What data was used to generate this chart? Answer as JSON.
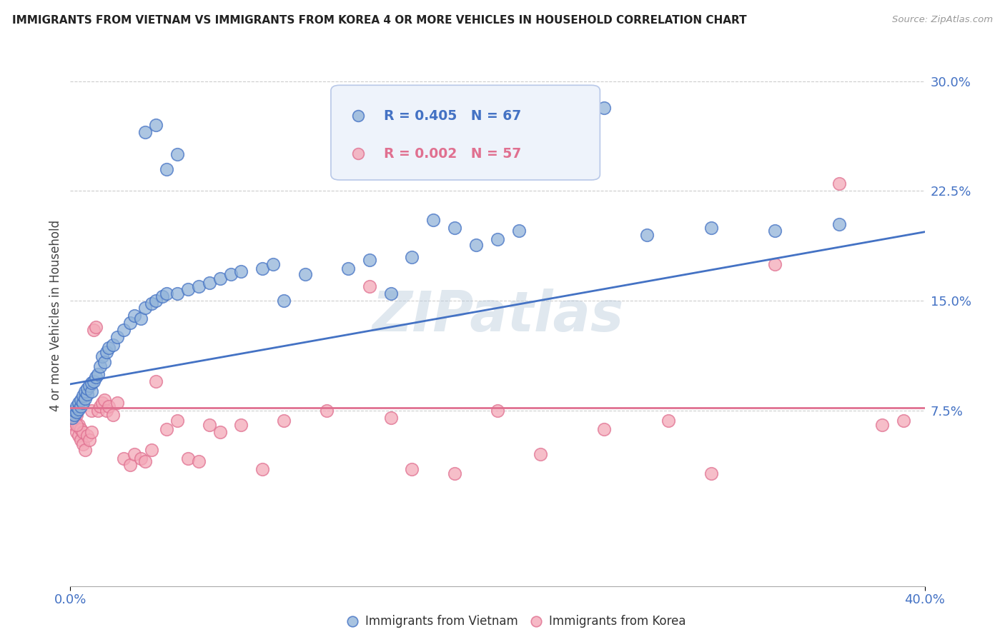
{
  "title": "IMMIGRANTS FROM VIETNAM VS IMMIGRANTS FROM KOREA 4 OR MORE VEHICLES IN HOUSEHOLD CORRELATION CHART",
  "source": "Source: ZipAtlas.com",
  "ylabel": "4 or more Vehicles in Household",
  "yticks": [
    0.075,
    0.15,
    0.225,
    0.3
  ],
  "ytick_labels": [
    "7.5%",
    "15.0%",
    "22.5%",
    "30.0%"
  ],
  "xlim": [
    0.0,
    0.4
  ],
  "ylim": [
    -0.045,
    0.325
  ],
  "vietnam_R": 0.405,
  "vietnam_N": 67,
  "korea_R": 0.002,
  "korea_N": 57,
  "vietnam_color": "#92B4D9",
  "korea_color": "#F4A8B8",
  "vietnam_line_color": "#4472C4",
  "korea_line_color": "#E07090",
  "legend_box_facecolor": "#EEF3FB",
  "legend_box_edgecolor": "#B8C8E8",
  "viet_line_x0": 0.0,
  "viet_line_y0": 0.093,
  "viet_line_x1": 0.4,
  "viet_line_y1": 0.197,
  "kor_line_x0": 0.0,
  "kor_line_y0": 0.077,
  "kor_line_x1": 0.4,
  "kor_line_y1": 0.077,
  "vietnam_x": [
    0.001,
    0.002,
    0.002,
    0.003,
    0.003,
    0.004,
    0.004,
    0.005,
    0.005,
    0.006,
    0.006,
    0.007,
    0.007,
    0.008,
    0.008,
    0.009,
    0.01,
    0.01,
    0.011,
    0.012,
    0.013,
    0.014,
    0.015,
    0.016,
    0.017,
    0.018,
    0.02,
    0.022,
    0.025,
    0.028,
    0.03,
    0.033,
    0.035,
    0.038,
    0.04,
    0.043,
    0.045,
    0.05,
    0.055,
    0.06,
    0.065,
    0.07,
    0.075,
    0.08,
    0.09,
    0.095,
    0.1,
    0.11,
    0.13,
    0.14,
    0.15,
    0.16,
    0.17,
    0.18,
    0.19,
    0.2,
    0.21,
    0.23,
    0.25,
    0.27,
    0.3,
    0.33,
    0.36,
    0.035,
    0.04,
    0.045,
    0.05
  ],
  "vietnam_y": [
    0.07,
    0.072,
    0.075,
    0.074,
    0.078,
    0.076,
    0.08,
    0.078,
    0.082,
    0.08,
    0.085,
    0.083,
    0.088,
    0.086,
    0.09,
    0.092,
    0.088,
    0.094,
    0.095,
    0.098,
    0.1,
    0.105,
    0.112,
    0.108,
    0.115,
    0.118,
    0.12,
    0.125,
    0.13,
    0.135,
    0.14,
    0.138,
    0.145,
    0.148,
    0.15,
    0.153,
    0.155,
    0.155,
    0.158,
    0.16,
    0.162,
    0.165,
    0.168,
    0.17,
    0.172,
    0.175,
    0.15,
    0.168,
    0.172,
    0.178,
    0.155,
    0.18,
    0.205,
    0.2,
    0.188,
    0.192,
    0.198,
    0.275,
    0.282,
    0.195,
    0.2,
    0.198,
    0.202,
    0.265,
    0.27,
    0.24,
    0.25
  ],
  "korea_x": [
    0.001,
    0.002,
    0.002,
    0.003,
    0.003,
    0.004,
    0.004,
    0.005,
    0.005,
    0.006,
    0.006,
    0.007,
    0.008,
    0.009,
    0.01,
    0.01,
    0.011,
    0.012,
    0.013,
    0.014,
    0.015,
    0.016,
    0.017,
    0.018,
    0.02,
    0.022,
    0.025,
    0.028,
    0.03,
    0.033,
    0.035,
    0.038,
    0.04,
    0.045,
    0.05,
    0.055,
    0.06,
    0.065,
    0.07,
    0.08,
    0.09,
    0.1,
    0.12,
    0.14,
    0.15,
    0.16,
    0.18,
    0.2,
    0.22,
    0.25,
    0.28,
    0.3,
    0.33,
    0.36,
    0.38,
    0.39,
    0.003
  ],
  "korea_y": [
    0.068,
    0.065,
    0.07,
    0.06,
    0.072,
    0.058,
    0.065,
    0.055,
    0.062,
    0.052,
    0.06,
    0.048,
    0.058,
    0.055,
    0.06,
    0.075,
    0.13,
    0.132,
    0.075,
    0.078,
    0.08,
    0.082,
    0.075,
    0.078,
    0.072,
    0.08,
    0.042,
    0.038,
    0.045,
    0.042,
    0.04,
    0.048,
    0.095,
    0.062,
    0.068,
    0.042,
    0.04,
    0.065,
    0.06,
    0.065,
    0.035,
    0.068,
    0.075,
    0.16,
    0.07,
    0.035,
    0.032,
    0.075,
    0.045,
    0.062,
    0.068,
    0.032,
    0.175,
    0.23,
    0.065,
    0.068,
    0.065
  ]
}
